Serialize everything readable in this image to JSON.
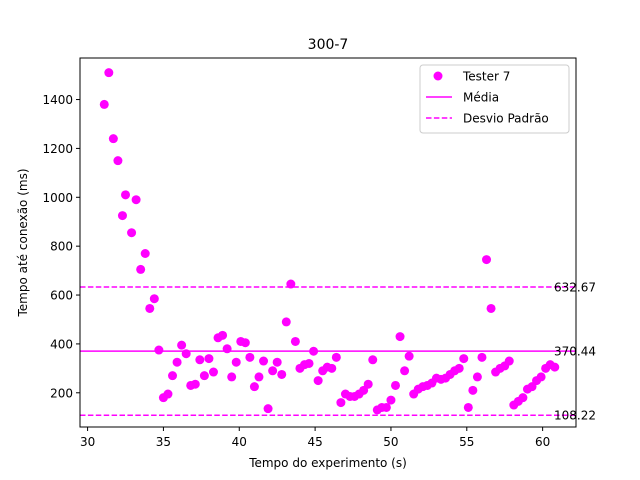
{
  "chart_data": {
    "type": "scatter",
    "title": "300-7",
    "xlabel": "Tempo do experimento (s)",
    "ylabel": "Tempo até conexão (ms)",
    "xlim": [
      29.5,
      62.2
    ],
    "ylim": [
      60,
      1570
    ],
    "x_ticks": [
      30,
      35,
      40,
      45,
      50,
      55,
      60
    ],
    "y_ticks": [
      200,
      400,
      600,
      800,
      1000,
      1200,
      1400
    ],
    "grid": false,
    "legend_position": "top-right",
    "colors": {
      "series": "#ff00ff",
      "axis": "#000000"
    },
    "series": [
      {
        "name": "Tester 7",
        "points": [
          [
            31.1,
            1380
          ],
          [
            31.4,
            1510
          ],
          [
            31.7,
            1240
          ],
          [
            32.0,
            1150
          ],
          [
            32.3,
            925
          ],
          [
            32.5,
            1010
          ],
          [
            32.9,
            855
          ],
          [
            33.2,
            990
          ],
          [
            33.5,
            705
          ],
          [
            33.8,
            770
          ],
          [
            34.1,
            545
          ],
          [
            34.4,
            585
          ],
          [
            34.7,
            375
          ],
          [
            35.0,
            180
          ],
          [
            35.3,
            195
          ],
          [
            35.6,
            270
          ],
          [
            35.9,
            325
          ],
          [
            36.2,
            395
          ],
          [
            36.5,
            360
          ],
          [
            36.8,
            230
          ],
          [
            37.1,
            235
          ],
          [
            37.4,
            335
          ],
          [
            37.7,
            270
          ],
          [
            38.0,
            340
          ],
          [
            38.3,
            285
          ],
          [
            38.6,
            425
          ],
          [
            38.9,
            435
          ],
          [
            39.2,
            380
          ],
          [
            39.5,
            265
          ],
          [
            39.8,
            325
          ],
          [
            40.1,
            410
          ],
          [
            40.4,
            405
          ],
          [
            40.7,
            345
          ],
          [
            41.0,
            225
          ],
          [
            41.3,
            265
          ],
          [
            41.6,
            330
          ],
          [
            41.9,
            135
          ],
          [
            42.2,
            290
          ],
          [
            42.5,
            325
          ],
          [
            42.8,
            275
          ],
          [
            43.1,
            490
          ],
          [
            43.4,
            645
          ],
          [
            43.7,
            410
          ],
          [
            44.0,
            300
          ],
          [
            44.3,
            315
          ],
          [
            44.6,
            320
          ],
          [
            44.9,
            370
          ],
          [
            45.2,
            250
          ],
          [
            45.5,
            290
          ],
          [
            45.8,
            305
          ],
          [
            46.1,
            300
          ],
          [
            46.4,
            345
          ],
          [
            46.7,
            160
          ],
          [
            47.0,
            195
          ],
          [
            47.3,
            185
          ],
          [
            47.6,
            185
          ],
          [
            47.9,
            195
          ],
          [
            48.2,
            210
          ],
          [
            48.5,
            235
          ],
          [
            48.8,
            335
          ],
          [
            49.1,
            130
          ],
          [
            49.4,
            140
          ],
          [
            49.7,
            140
          ],
          [
            50.0,
            170
          ],
          [
            50.3,
            230
          ],
          [
            50.6,
            430
          ],
          [
            50.9,
            290
          ],
          [
            51.2,
            350
          ],
          [
            51.5,
            195
          ],
          [
            51.8,
            215
          ],
          [
            52.1,
            225
          ],
          [
            52.4,
            230
          ],
          [
            52.7,
            240
          ],
          [
            53.0,
            260
          ],
          [
            53.3,
            255
          ],
          [
            53.6,
            260
          ],
          [
            53.9,
            275
          ],
          [
            54.2,
            290
          ],
          [
            54.5,
            300
          ],
          [
            54.8,
            340
          ],
          [
            55.1,
            140
          ],
          [
            55.4,
            210
          ],
          [
            55.7,
            265
          ],
          [
            56.0,
            345
          ],
          [
            56.3,
            745
          ],
          [
            56.6,
            545
          ],
          [
            56.9,
            285
          ],
          [
            57.2,
            300
          ],
          [
            57.5,
            310
          ],
          [
            57.8,
            330
          ],
          [
            58.1,
            150
          ],
          [
            58.4,
            165
          ],
          [
            58.7,
            180
          ],
          [
            59.0,
            215
          ],
          [
            59.3,
            225
          ],
          [
            59.6,
            250
          ],
          [
            59.9,
            265
          ],
          [
            60.2,
            300
          ],
          [
            60.5,
            315
          ],
          [
            60.8,
            305
          ]
        ]
      }
    ],
    "reference_lines": [
      {
        "name": "Média",
        "value": 370.44,
        "label": "370.44",
        "style": "solid"
      },
      {
        "name": "Desvio Padrão",
        "value": 632.67,
        "label": "632.67",
        "style": "dashed"
      },
      {
        "name": "Desvio Padrão",
        "value": 108.22,
        "label": "108.22",
        "style": "dashed",
        "in_legend": false
      }
    ]
  }
}
